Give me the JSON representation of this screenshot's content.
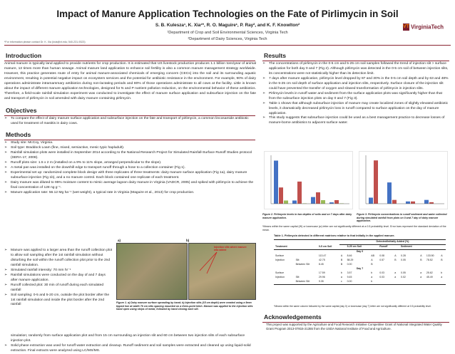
{
  "header": {
    "title": "Impact of Manure Application Technologies on the Fate of Pirlimycin in Soil",
    "authors": "S. B. Kulesza¹, K. Xia¹*, R. O. Maguire¹, P. Ray², and K. F. Knowlton²",
    "affiliation1": "¹Department of Crop and Soil Environmental Sciences, Virginia Tech",
    "affiliation2": "²Department of Dairy Sciences, Virginia Tech",
    "contact": "*For information please contact Dr. K. Xia (kxia@vt.edu; 540-231-9323)",
    "logo_text": "VirginiaTech",
    "logo_mark": "VT"
  },
  "introduction": {
    "heading": "Introduction",
    "text": "Animal manure is typically land applied to provide nutrients for crop production. It is estimated that US livestock production produces 1.1 billion tons/year of animal manure, 13 times more than human sewage. Animal manure land application to enhance soil fertility is also a common manure management strategy worldwide. However, this practice generates route of entry for animal manure-associated chemicals of emerging concern (CECs) into the soil and its surrounding aquatic environment, resulting in potential negative impact on ecosystem services and the potential for antibiotic resistance in the environment. For example, 90% of dairy operations administrate intramammary antibiotics during non-lactating periods and 80% of those operations administrate to all cows at the facility. Little is known about the impact of different manure application technologies, designed for N and P nutrient pollution reduction, on the environmental behavior of these antibiotics. Therefore, a field-scale rainfall simulation experiment was conducted to investigate the effect of manure surface application and subsurface injection on the fate and transport of pirlimycin in soil amended with dairy manure containing pirlimycin."
  },
  "objectives": {
    "heading": "Objectives",
    "items": [
      "To compare the effect of dairy manure surface application and subsurface injection on the fate and transport of pirlimycin, a common lincosamide antibiotic used for treatment of mastitis in dairy cows."
    ]
  },
  "methods": {
    "heading": "Methods",
    "items_full": [
      "Study site: McCoy, Virginia.",
      "Soil type: Braddock Loam (fine, mixed, semiactive, mesic typic hapludult).",
      "Rainfall simulation plots were installed in September 2014 according to the National Research Project for Simulated Rainfall-Surface Runoff Studies protocol (SERA-17, 2008).",
      "Runoff plots size: 1.5 x 2 m (installed on a 9% to 11% slope, arranged perpendicular to the slope).",
      "A metal pan was installed on the downhill edge to transport runoff through a hose to a collection container (Fig 1).",
      "Experimental set up: randomized complete block design with three replicates of three treatments: dairy manure surface application (Fig 1a), dairy manure subsurface injection (Fig 1b), and a no manure control. Each block contained one replicate of each treatment.",
      "Dairy manure was diluted to 95% moisture content to mimic average lagoon dairy manure in Virginia (VADCR, 2005) and spiked with pirlimycin to achieve the final concentration of 128 ng g⁻¹.",
      "Manure application rate: 56.12 Mg ha⁻¹ (wet weight), a typical rate in Virginia (Maguire et al., 2013) for crop production."
    ],
    "items_narrow": [
      "Manure was applied to a larger area than the runoff collection plot to allow soil sampling after the 1st rainfall simulation without disturbing the soil within the runoff collection plot prior to the 2nd rainfall simulation.",
      "Simulated rainfall intensity: 70 mm hr⁻¹",
      "Rainfall simulations were conducted on the day of and 7 days after manure application.",
      "Runoff collected plot: 30 min of runoff during each simulated rainfall",
      "Soil sampling: 0-5 and 5-20 cm, outside the plot border after the 1st rainfall simulation and inside the plot border after the 2nd rainfall"
    ],
    "items_tail": [
      "simulation; randomly from surface application plot and from 15 cm surrounding an injection slit and 60 cm between two injection slits of each subsurface injection plot.",
      "Solid phase extraction was used for runoff water extraction and cleanup. Runoff sediment and soil samples were extracted and cleaned up using liquid-solid extraction. Final extracts were analyzed using LC/MS/MS."
    ]
  },
  "figure1": {
    "label_a": "a)",
    "label_b": "b)",
    "annotation": "Injection slits where manure was added",
    "caption": "Figure 1. a) Dairy manure surface spreading by hand; b) Injection slits (15 cm depth) were created using a 9mm tipped hoe at width 76 cm slits spacing mounted on a three-point hitch. Manure was applied to the injection slits hand open using strips of metal, followed by hand closing each slit."
  },
  "results": {
    "heading": "Results",
    "items": [
      "The concentrations of pirlimycin in the 0-5 cm and 5-25 cm soil samples followed the trend of injection slit > surface application for both day 0 and 7 (Fig 2). Although pirlimycin was detected in the 0-5 cm soil of between injection slits, its concentrations were not statistically higher than its detection limit.",
      "7 days after manure application, pirlimycin level dropped by 87 and 30% in the 0-5 cm soil depth and by 63 and 48% in the 5-25 cm soil depth of surface application and injection slits, respectively. Surface closure of the injection slit could have prevented the transfer of oxygen and slowed transformation of pirlimycin in injection slits.",
      "Pirlimycin levels in runoff water and sediment from the surface application plots was significantly higher than that from the subsurface injection plots on day 0 and 7 (Fig 3).",
      "Table 1 shows that although subsurface injection of manure may create localized zones of slightly elevated antibiotic levels, it dramatically decreased pirlimycin loss in runoff compared to surface application on the day of manure application.",
      "This study suggests that subsurface injection could be used as a best management practice to decrease losses of manure-borne antibiotics to adjacent surface water."
    ]
  },
  "figure2": {
    "caption": "Figure 2. Pirlimycin levels in two depths of soils and on 7 days after dairy manure application."
  },
  "figure3": {
    "caption": "Figure 3. Pirlimycin concentrations in runoff sediment and water collected during simulated rainfall from plots on 0 and 7 day of dairy manure application."
  },
  "note": "*Means within the same capital (W) or lowercase (w) letter are not significantly different at a 0.5 probability level. Error bars represent the standard deviation of the mean.",
  "table1": {
    "caption": "Table 1. Pirlimycin detected in different matrixes relative to that initially in the applied manure.",
    "group_header": "Detected/Initially Added (%)",
    "day0": "Day 0",
    "day7": "Day 7",
    "col_treatment": "Treatment",
    "col_soil": "0-5 cm Soil",
    "col_soil2": "5-25 cm Soil",
    "col_runoff": "Runoff",
    "col_sediment": "Sediment",
    "rows": [
      {
        "treatment": "Surface",
        "position": "",
        "v": [
          "113.47",
          "A",
          "8.46",
          "AB",
          "0.08",
          "A",
          "0.28",
          "A",
          "133.50",
          "A"
        ]
      },
      {
        "treatment": "Injection",
        "position": "Slit",
        "v": [
          "42.75",
          "B",
          "58.29",
          "A",
          "0.57",
          "B",
          "0.05",
          "B",
          "78.52",
          "B"
        ]
      },
      {
        "treatment": "",
        "position": "Between Slit",
        "v": [
          "8.45",
          "B",
          "0.00",
          "B",
          "",
          "",
          "",
          "",
          "",
          ""
        ]
      },
      {
        "treatment": "Surface",
        "position": "",
        "v": [
          "17.59",
          "b",
          "3.57",
          "b",
          "0.03",
          "a",
          "0.05",
          "a",
          "25.62",
          "b"
        ]
      },
      {
        "treatment": "Injection",
        "position": "Slit",
        "v": [
          "29.96",
          "a",
          "9.45",
          "a",
          "0.03",
          "a",
          "0.02",
          "a",
          "45.49",
          "a"
        ]
      },
      {
        "treatment": "",
        "position": "Between Slit",
        "v": [
          "9.35",
          "c",
          "0.00",
          "b",
          "",
          "",
          "",
          "",
          "",
          ""
        ]
      }
    ],
    "footnote": "*Means within the same column followed by the same capital (day 0) or lowercase (day 7) letter are not significantly different at 0.5 probability level."
  },
  "acknowledgements": {
    "heading": "Acknowledgements",
    "text": "This project was supported by the Agriculture and Food Research Initiative Competitive Grant of National Integrated Water Quality Grant Program 2013-07815-21355 from the USDA National Institute of Food and Agriculture."
  },
  "colors": {
    "accent": "#8a2432",
    "brand_orange": "#f07f09",
    "bar_surface": "#4472c4",
    "bar_slit": "#c0504d",
    "bar_between": "#9bbb59"
  }
}
